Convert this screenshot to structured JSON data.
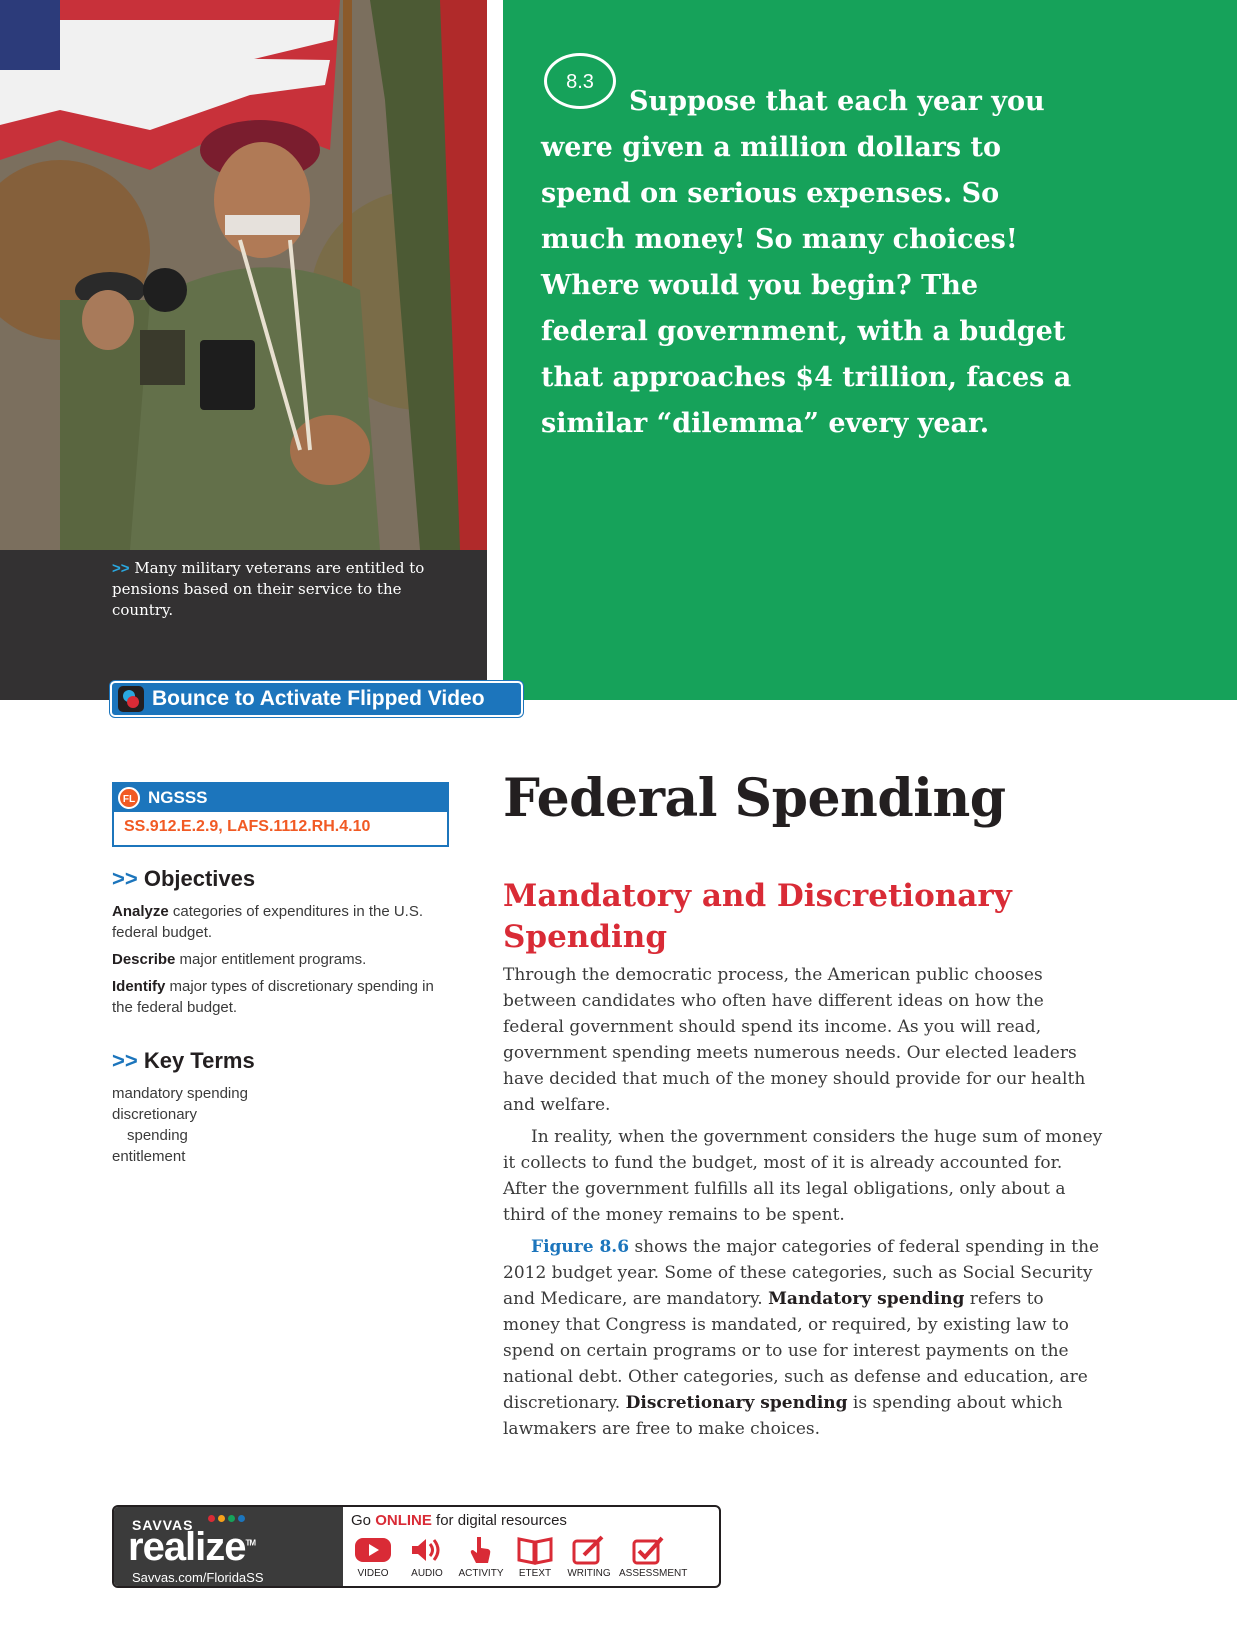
{
  "photo": {
    "caption": "Many military veterans are entitled to pensions based on their service to the country."
  },
  "intro": {
    "lesson_number": "8.3",
    "text": "Suppose that each year you were given a million dollars to spend on serious expenses. So much money! So many choices! Where would you begin? The federal government, with a budget that approaches $4 trillion, faces a similar “dilemma” every year."
  },
  "video_tab": {
    "label": "Bounce to Activate Flipped Video"
  },
  "standards": {
    "badge": "FL",
    "heading": "NGSSS",
    "codes": "SS.912.E.2.9, LAFS.1112.RH.4.10"
  },
  "objectives": {
    "heading": "Objectives",
    "items": [
      {
        "verb": "Analyze",
        "rest": " categories of expenditures in the U.S. federal budget."
      },
      {
        "verb": "Describe",
        "rest": " major entitlement programs."
      },
      {
        "verb": "Identify",
        "rest": " major types of discretionary spending in the federal budget."
      }
    ]
  },
  "key_terms": {
    "heading": "Key Terms",
    "term1": "mandatory spending",
    "term2_a": "discretionary",
    "term2_b": "spending",
    "term3": "entitlement"
  },
  "main": {
    "title": "Federal Spending",
    "subhead": "Mandatory and Discretionary Spending",
    "p1": "Through the democratic process, the American public chooses between candidates who often have different ideas on how the federal government should spend its income. As you will read, government spending meets numerous needs. Our elected leaders have decided that much of the money should provide for our health and welfare.",
    "p2": "In reality, when the government considers the huge sum of money it collects to fund the budget, most of it is already accounted for. After the government fulfills all its legal obligations, only about a third of the money remains to be spent.",
    "p3_fig": "Figure 8.6",
    "p3_a": " shows the major categories of federal spending in the 2012 budget year. Some of these categories, such as Social Security and Medicare, are mandatory. ",
    "p3_term1": "Mandatory spending",
    "p3_b": " refers to money that Congress is mandated, or required, by existing law to spend on certain programs or to use for interest payments on the national debt. Other categories, such as defense and education, are discretionary. ",
    "p3_term2": "Discretionary spending",
    "p3_c": " is spending about which lawmakers are free to make choices."
  },
  "footer": {
    "brand_top": "SAVVAS",
    "brand_name": "realize",
    "brand_tm": "TM",
    "url": "Savvas.com/FloridaSS",
    "go_a": "Go ",
    "go_online": "ONLINE",
    "go_b": " for digital resources",
    "tools": [
      {
        "label": "VIDEO",
        "icon": "video-icon"
      },
      {
        "label": "AUDIO",
        "icon": "audio-icon"
      },
      {
        "label": "ACTIVITY",
        "icon": "activity-icon"
      },
      {
        "label": "ETEXT",
        "icon": "etext-icon"
      },
      {
        "label": "WRITING",
        "icon": "writing-icon"
      },
      {
        "label": "ASSESSMENT",
        "icon": "assessment-icon"
      }
    ],
    "colors": {
      "red": "#d92b36",
      "dark": "#3b3b3b"
    }
  },
  "colors": {
    "green": "#16a25a",
    "blue": "#1c75bc",
    "orange": "#f15a24",
    "red": "#d92b36"
  }
}
